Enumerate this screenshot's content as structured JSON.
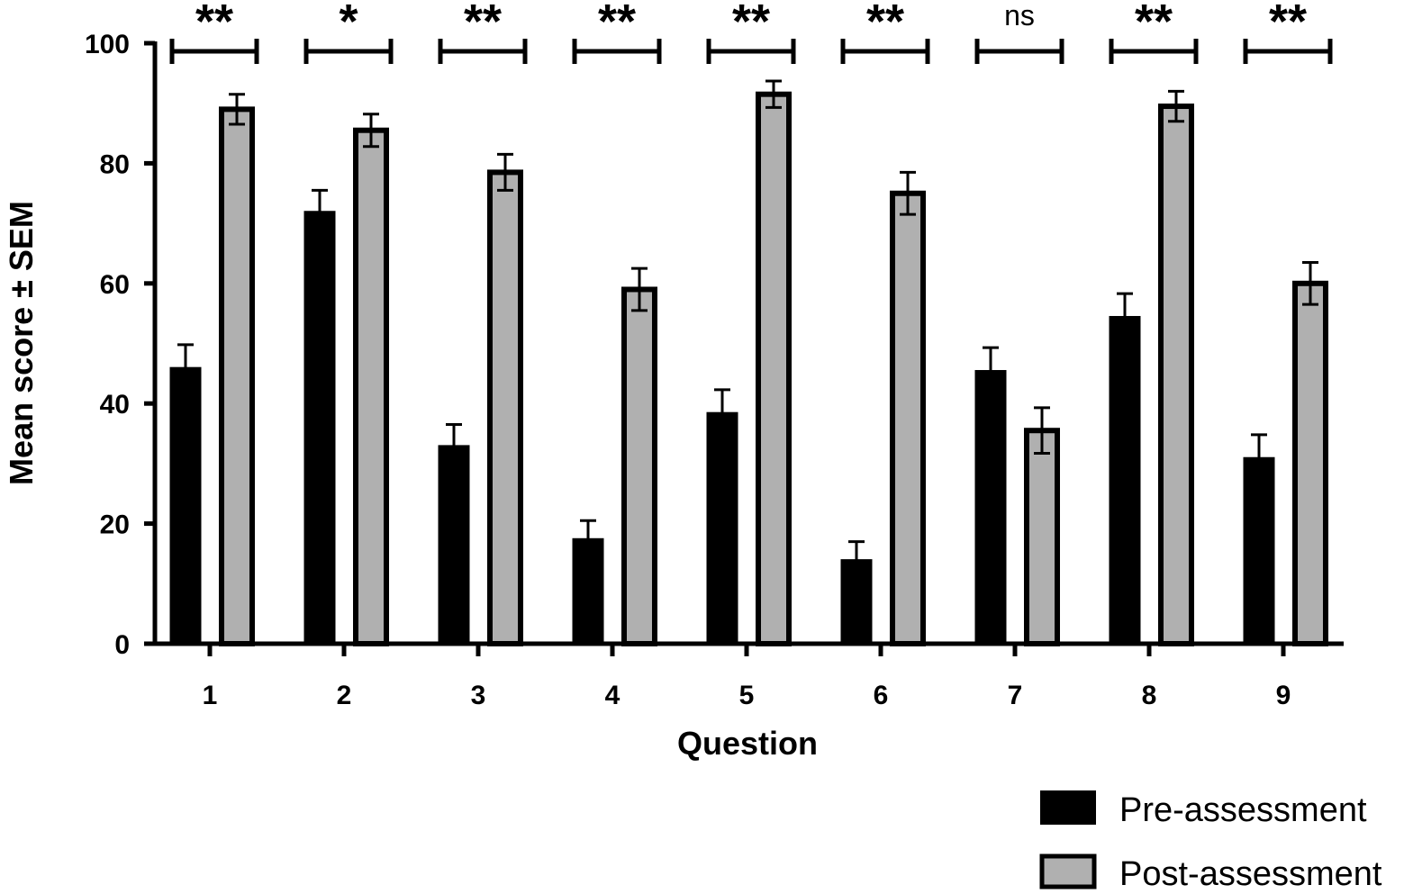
{
  "chart_data": {
    "type": "bar",
    "xlabel": "Question",
    "ylabel": "Mean score ± SEM",
    "ylim": [
      0,
      100
    ],
    "yticks": [
      0,
      20,
      40,
      60,
      80,
      100
    ],
    "categories": [
      "1",
      "2",
      "3",
      "4",
      "5",
      "6",
      "7",
      "8",
      "9"
    ],
    "series": [
      {
        "name": "Pre-assessment",
        "color": "#000000",
        "values": [
          46,
          72,
          33,
          17.5,
          38.5,
          14,
          45.5,
          54.5,
          31
        ],
        "sem": [
          3.8,
          3.5,
          3.5,
          3.0,
          3.8,
          3.0,
          3.8,
          3.8,
          3.8
        ]
      },
      {
        "name": "Post-assessment",
        "color": "#b0b0b0",
        "values": [
          89,
          85.5,
          78.5,
          59,
          91.5,
          75,
          35.5,
          89.5,
          60
        ],
        "sem": [
          2.5,
          2.7,
          3.0,
          3.5,
          2.2,
          3.5,
          3.8,
          2.5,
          3.5
        ]
      }
    ],
    "significance": [
      "**",
      "*",
      "**",
      "**",
      "**",
      "**",
      "ns",
      "**",
      "**"
    ],
    "legend_position": "bottom-right",
    "grid": false
  }
}
